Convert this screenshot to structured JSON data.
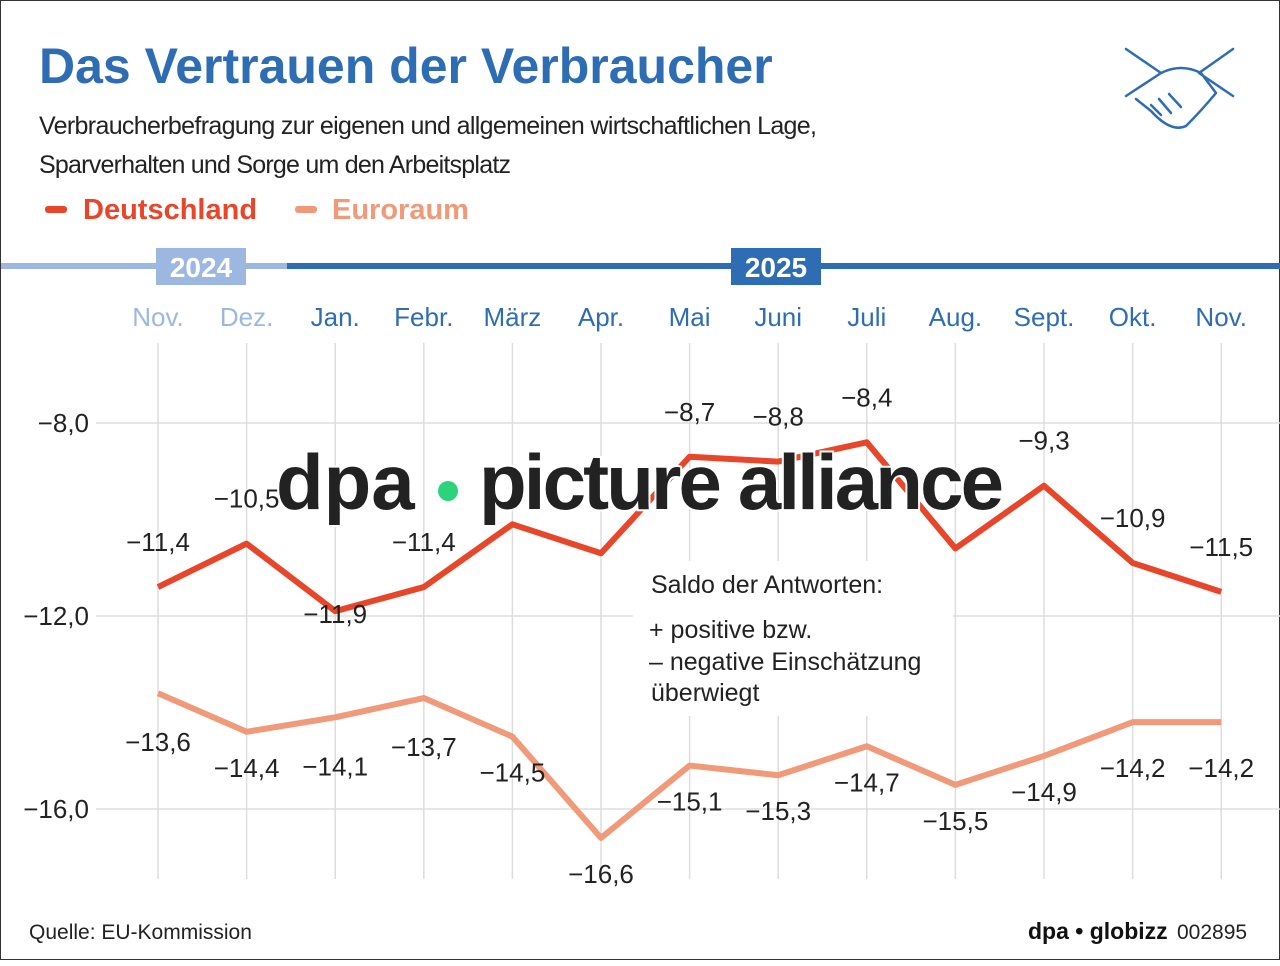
{
  "chart_data": {
    "type": "line",
    "title": "Das Vertrauen der Verbraucher",
    "subtitle_lines": [
      "Verbraucherbefragung zur eigenen und allgemeinen wirtschaftlichen Lage,",
      "Sparverhalten und Sorge um den Arbeitsplatz"
    ],
    "year_labels": [
      {
        "label": "2024",
        "start_index": 0,
        "end_index": 1
      },
      {
        "label": "2025",
        "start_index": 2,
        "end_index": 12
      }
    ],
    "categories": [
      "Nov.",
      "Dez.",
      "Jan.",
      "Febr.",
      "März",
      "Apr.",
      "Mai",
      "Juni",
      "Juli",
      "Aug.",
      "Sept.",
      "Okt.",
      "Nov."
    ],
    "series": [
      {
        "name": "Deutschland",
        "color": "#e8462a",
        "values": [
          -11.4,
          -10.5,
          -11.9,
          -11.4,
          -10.1,
          -10.7,
          -8.7,
          -8.8,
          -8.4,
          -10.6,
          -9.3,
          -10.9,
          -11.5
        ],
        "labels": [
          "−11,4",
          "−10,5",
          "−11,9",
          "−11,4",
          "",
          "",
          "−8,7",
          "−8,8",
          "−8,4",
          "",
          "−9,3",
          "−10,9",
          "−11,5"
        ]
      },
      {
        "name": "Euroraum",
        "color": "#f19a7a",
        "values": [
          -13.6,
          -14.4,
          -14.1,
          -13.7,
          -14.5,
          -16.6,
          -15.1,
          -15.3,
          -14.7,
          -15.5,
          -14.9,
          -14.2,
          -14.2
        ],
        "labels": [
          "−13,6",
          "−14,4",
          "−14,1",
          "−13,7",
          "−14,5",
          "−16,6",
          "−15,1",
          "−15,3",
          "−14,7",
          "−15,5",
          "−14,9",
          "−14,2",
          "−14,2"
        ]
      }
    ],
    "yticks": [
      -8,
      -12,
      -16
    ],
    "ytick_labels": [
      "−8,0",
      "−12,0",
      "−16,0"
    ],
    "ylim": [
      -17.3,
      -6.3
    ],
    "grid": true,
    "legend_placement": "top-left",
    "annotation": [
      "Saldo der Antworten:",
      "+  positive bzw.",
      "–  negative Einschätzung",
      "überwiegt"
    ],
    "source": "Quelle: EU-Kommission",
    "brand": "dpa • globizz",
    "graphic_id": "002895",
    "watermark": "dpa • picture alliance",
    "colors": {
      "title": "#2e6db4",
      "axis_2025": "#2e6db4",
      "axis_2024": "#9db8e0"
    },
    "icon": "handshake-icon"
  }
}
